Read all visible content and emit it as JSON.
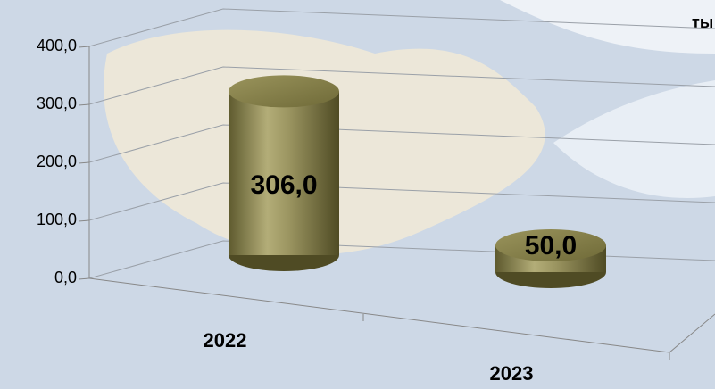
{
  "chart_data": {
    "type": "bar3d-cylinder",
    "annotation": "ты",
    "categories": [
      "2022",
      "2023"
    ],
    "values": [
      306,
      50
    ],
    "value_labels": [
      "306,0",
      "50,0"
    ],
    "color": "#8a8450",
    "ylim": [
      0,
      400
    ],
    "yticks": [
      {
        "value": 0,
        "label": "0,0"
      },
      {
        "value": 100,
        "label": "100,0"
      },
      {
        "value": 200,
        "label": "200,0"
      },
      {
        "value": 300,
        "label": "300,0"
      },
      {
        "value": 400,
        "label": "400,0"
      }
    ],
    "grid": true
  }
}
